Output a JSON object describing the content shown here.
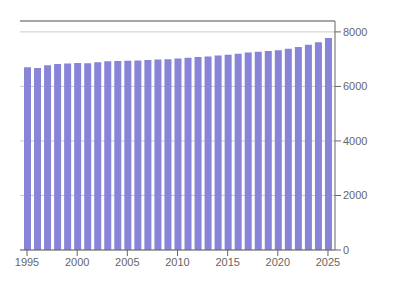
{
  "chart_data": {
    "type": "bar",
    "x": [
      1995,
      1996,
      1997,
      1998,
      1999,
      2000,
      2001,
      2002,
      2003,
      2004,
      2005,
      2006,
      2007,
      2008,
      2009,
      2010,
      2011,
      2012,
      2013,
      2014,
      2015,
      2016,
      2017,
      2018,
      2019,
      2020,
      2021,
      2022,
      2023,
      2024,
      2025
    ],
    "values": [
      6700,
      6680,
      6780,
      6820,
      6840,
      6860,
      6850,
      6890,
      6920,
      6930,
      6940,
      6950,
      6970,
      6990,
      7000,
      7020,
      7050,
      7080,
      7100,
      7130,
      7160,
      7200,
      7240,
      7270,
      7300,
      7330,
      7380,
      7450,
      7530,
      7620,
      7780
    ],
    "xlim": [
      1994.3,
      2025.7
    ],
    "xticks": [
      1995,
      2000,
      2005,
      2010,
      2015,
      2020,
      2025
    ],
    "ylim": [
      0,
      8400
    ],
    "yticks": [
      0,
      2000,
      4000,
      6000,
      8000
    ],
    "grid": true
  }
}
